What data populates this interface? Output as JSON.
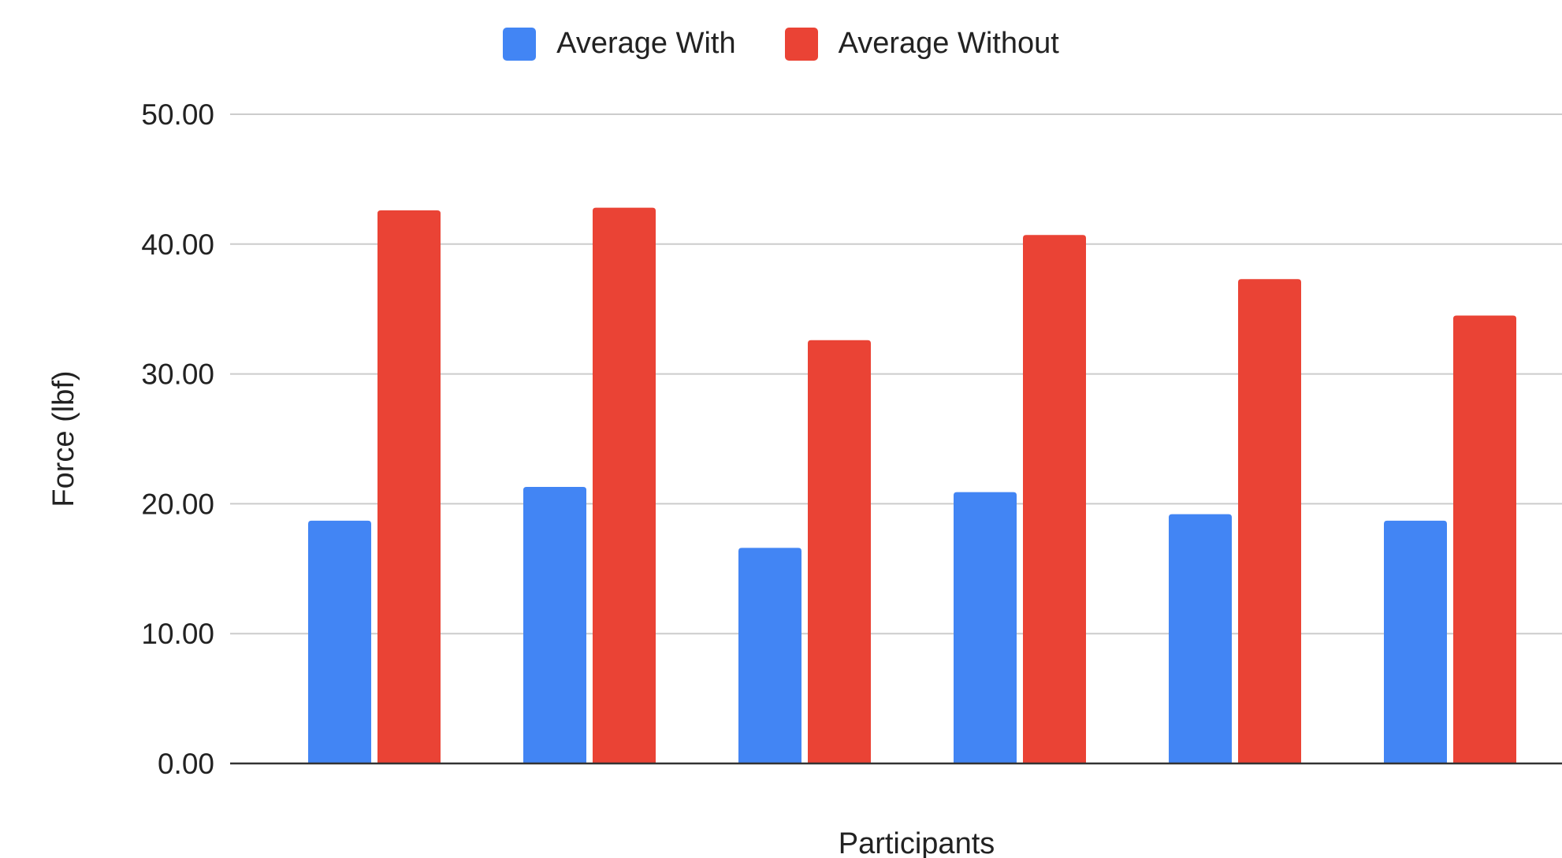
{
  "chart_data": {
    "type": "bar",
    "title": "",
    "xlabel": "Participants",
    "ylabel": "Force (lbf)",
    "ylim": [
      0,
      50
    ],
    "yticks": [
      "0.00",
      "10.00",
      "20.00",
      "30.00",
      "40.00",
      "50.00"
    ],
    "ytick_values": [
      0,
      10,
      20,
      30,
      40,
      50
    ],
    "categories": [
      "",
      "",
      "",
      "",
      "",
      "",
      ""
    ],
    "grid": true,
    "legend_position": "top-center",
    "series": [
      {
        "name": "Average With",
        "color": "#4285F4",
        "values": [
          18.7,
          21.3,
          16.6,
          20.9,
          19.2,
          18.7,
          null
        ]
      },
      {
        "name": "Average Without",
        "color": "#EA4335",
        "values": [
          42.6,
          42.8,
          32.6,
          40.7,
          37.3,
          34.5,
          null
        ]
      }
    ]
  }
}
